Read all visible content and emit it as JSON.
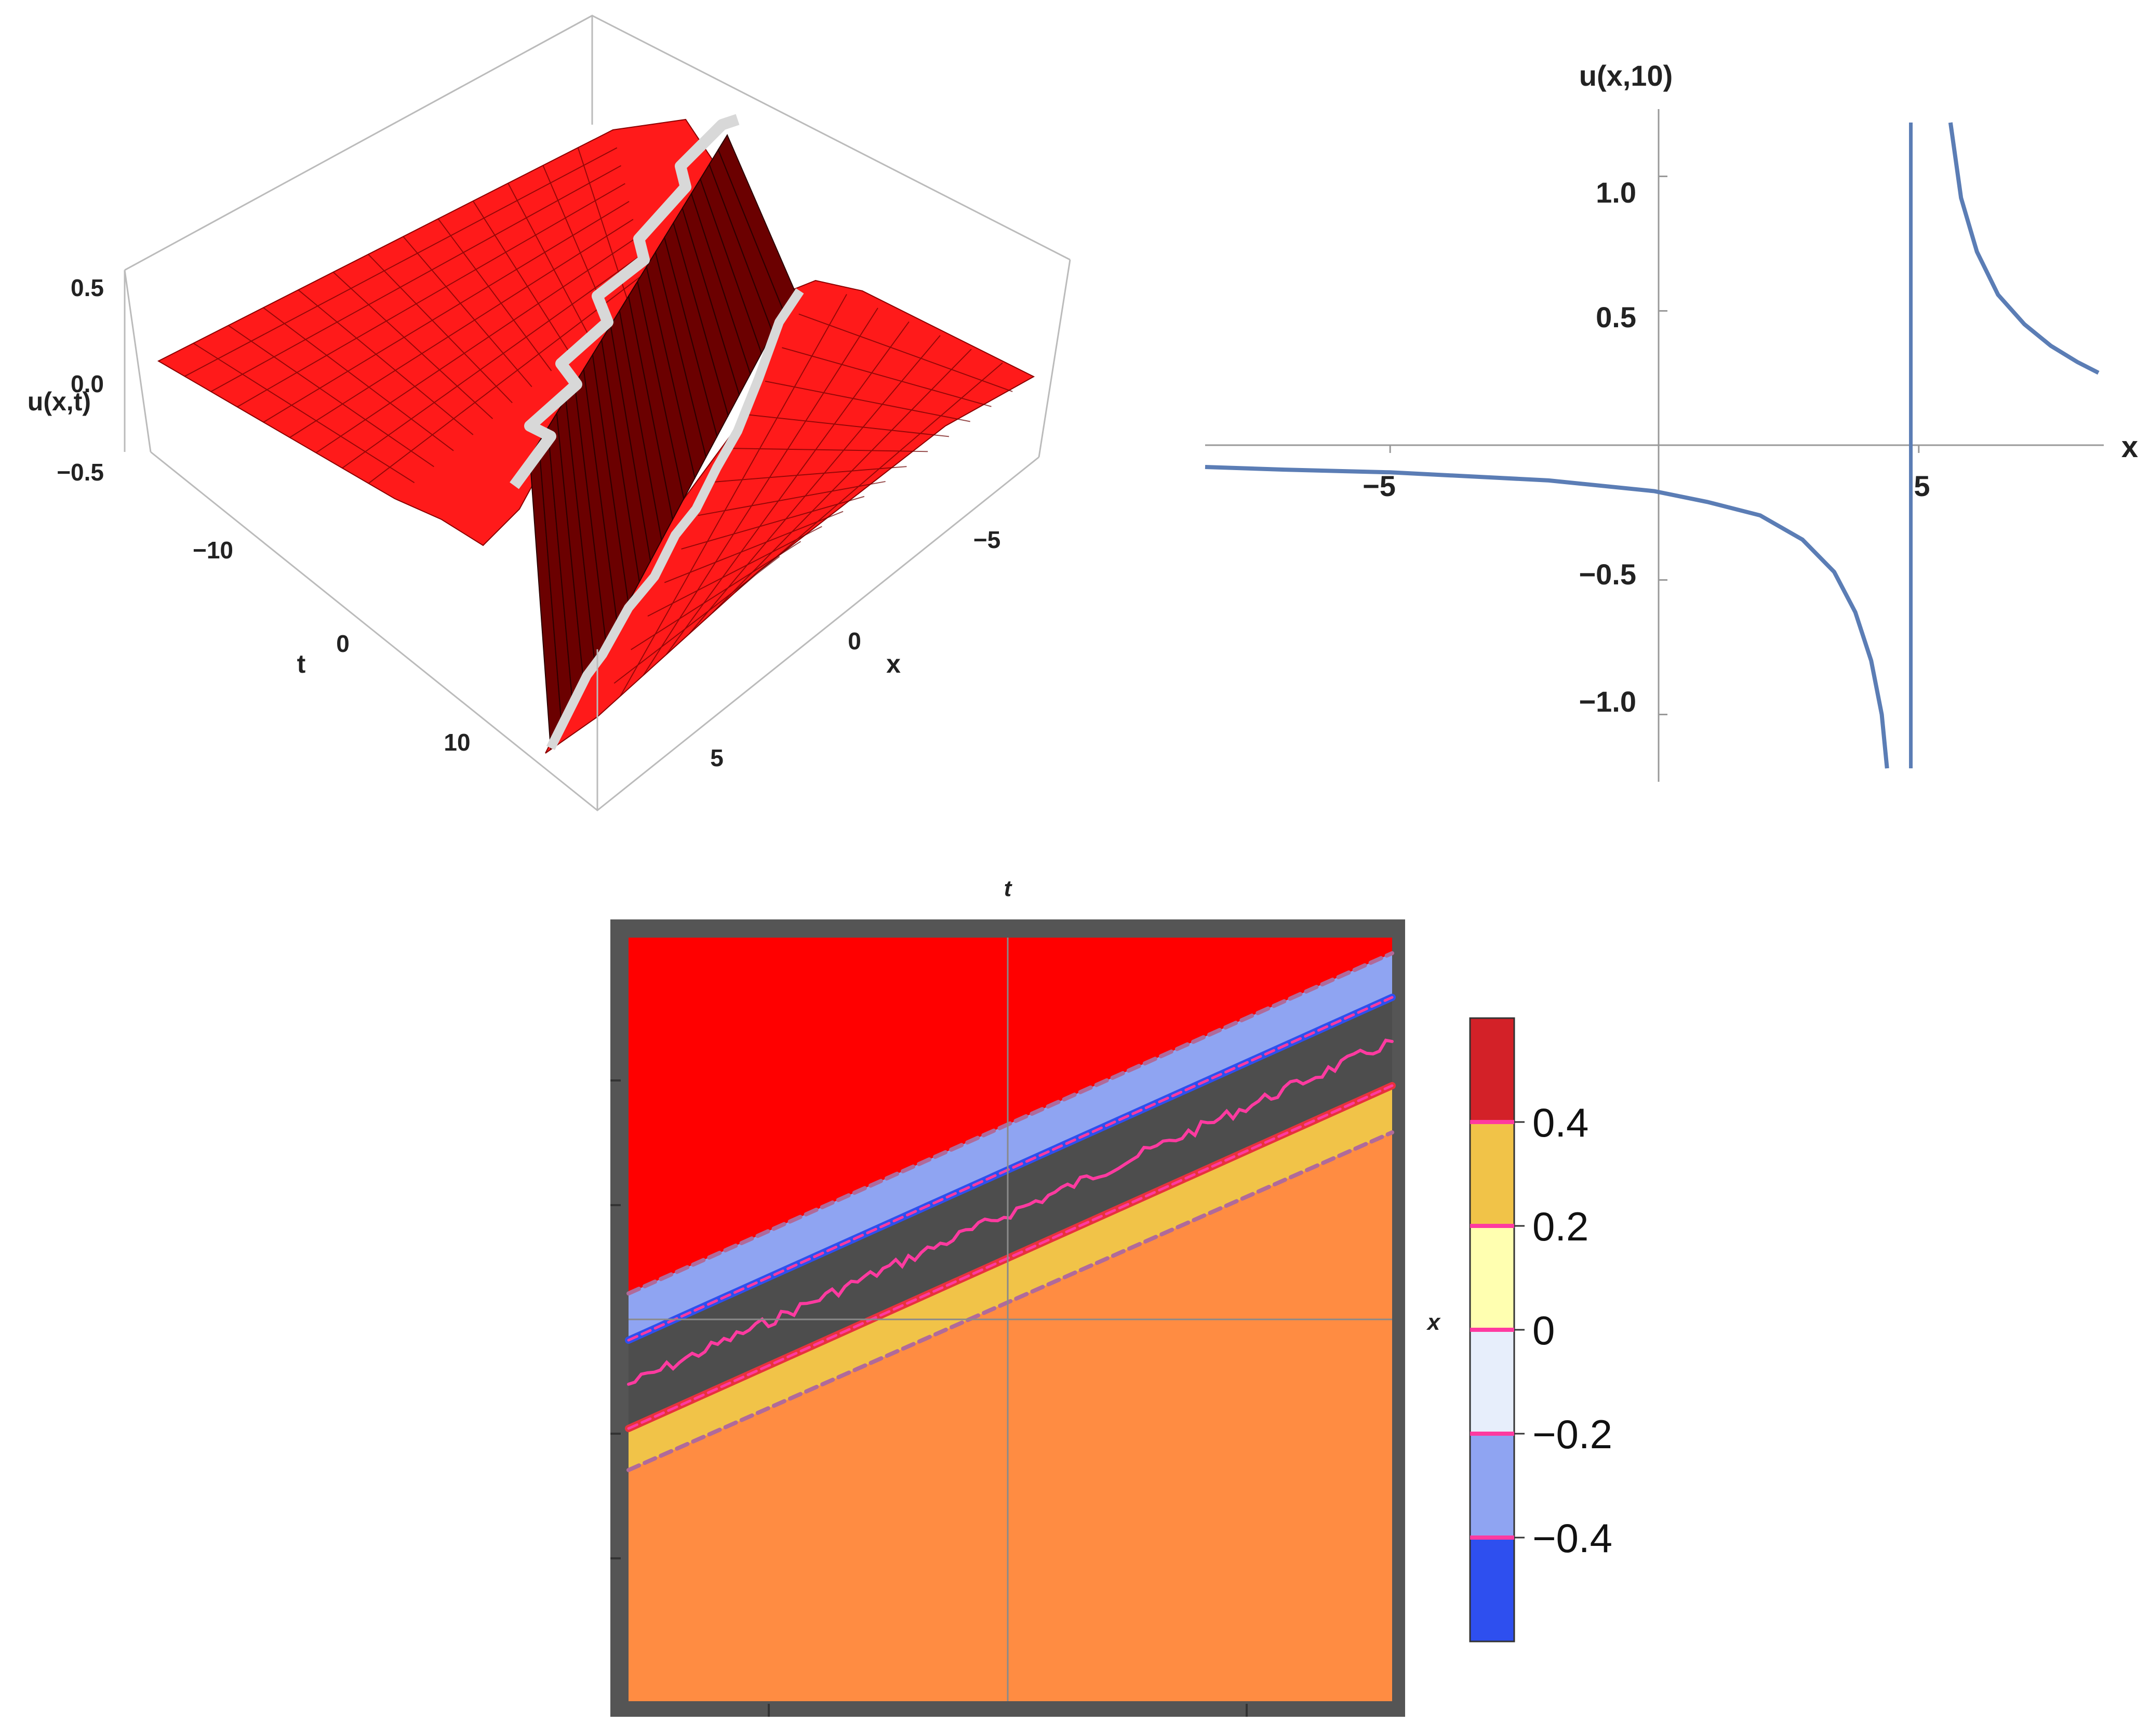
{
  "chart_data": [
    {
      "type": "surface",
      "zlabel": "u(x,t)",
      "xlabel": "x",
      "ylabel": "t",
      "x_range": [
        -8,
        8
      ],
      "t_range": [
        -15,
        15
      ],
      "z_range": [
        -0.6,
        0.6
      ],
      "x_ticks": [
        "−5",
        "0",
        "5"
      ],
      "t_ticks": [
        "−10",
        "0",
        "10"
      ],
      "z_ticks": [
        "0.5",
        "0.0",
        "−0.5"
      ],
      "surface_color": "#ff1a1a",
      "wall_color": "#6b0000",
      "mesh_color": "#5a0000",
      "cut_color": "#d8d8d8"
    },
    {
      "type": "line",
      "title": "u(x,10)",
      "xlabel": "x",
      "ylabel": "",
      "xlim": [
        -8.5,
        8.5
      ],
      "ylim": [
        -1.25,
        1.25
      ],
      "x_ticks": [
        -5,
        5
      ],
      "x_tick_labels": [
        "−5",
        "5"
      ],
      "y_ticks": [
        1.0,
        0.5,
        -0.5,
        -1.0
      ],
      "y_tick_labels": [
        "1.0",
        "0.5",
        "−0.5",
        "−1.0"
      ],
      "series": [
        {
          "color": "#5b7db5",
          "points": [
            [
              -8.5,
              -0.08
            ],
            [
              -7,
              -0.09
            ],
            [
              -6,
              -0.095
            ],
            [
              -5,
              -0.1
            ],
            [
              -4,
              -0.11
            ],
            [
              -3,
              -0.12
            ],
            [
              -2,
              -0.13
            ],
            [
              -1,
              -0.15
            ],
            [
              0,
              -0.17
            ],
            [
              1,
              -0.21
            ],
            [
              2,
              -0.26
            ],
            [
              2.8,
              -0.35
            ],
            [
              3.4,
              -0.47
            ],
            [
              3.8,
              -0.62
            ],
            [
              4.1,
              -0.8
            ],
            [
              4.3,
              -1.0
            ],
            [
              4.4,
              -1.2
            ]
          ],
          "vertical_line_x": 4.85,
          "right_branch": [
            [
              5.6,
              1.2
            ],
            [
              5.8,
              0.92
            ],
            [
              6.1,
              0.72
            ],
            [
              6.5,
              0.56
            ],
            [
              7,
              0.45
            ],
            [
              7.5,
              0.37
            ],
            [
              8,
              0.31
            ],
            [
              8.4,
              0.27
            ]
          ]
        }
      ]
    },
    {
      "type": "contour",
      "xlabel": "x",
      "ylabel": "t",
      "band_colors": [
        "#ff0000",
        "#8fa4f2",
        "#4d4d4d",
        "#e8323c",
        "#f1c348",
        "#ff8c42"
      ],
      "frame_color": "#555555",
      "legend": {
        "levels": [
          "0.4",
          "0.2",
          "0",
          "−0.2",
          "−0.4"
        ],
        "colors": [
          "#d32128",
          "#f1c348",
          "#ffffb0",
          "#e7eefb",
          "#8fa4f2",
          "#2e4fef"
        ],
        "separator_color": "#ff3aa0"
      }
    }
  ]
}
